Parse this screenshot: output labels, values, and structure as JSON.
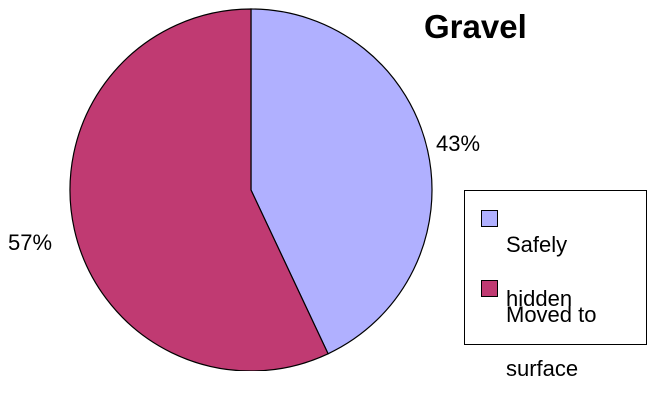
{
  "chart_data": {
    "type": "pie",
    "title": "Gravel",
    "categories": [
      "Safely hidden",
      "Moved to surface"
    ],
    "values": [
      43,
      57
    ],
    "data_labels": [
      "43%",
      "57%"
    ],
    "colors": [
      "#b0b0ff",
      "#c03a72"
    ],
    "legend": {
      "placement": "right",
      "items": [
        {
          "label_line1": "Safely",
          "label_line2": "hidden"
        },
        {
          "label_line1": "Moved to",
          "label_line2": "surface"
        }
      ]
    }
  }
}
